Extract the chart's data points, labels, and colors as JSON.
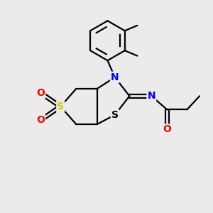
{
  "bg_color": "#ebebeb",
  "atom_colors": {
    "S_sul": "#cccc00",
    "S_thz": "#000000",
    "N": "#0000ff",
    "O": "#ff0000",
    "C": "#000000"
  },
  "bond_color": "#000000",
  "figsize": [
    3.0,
    3.0
  ],
  "dpi": 100,
  "lw": 1.6
}
